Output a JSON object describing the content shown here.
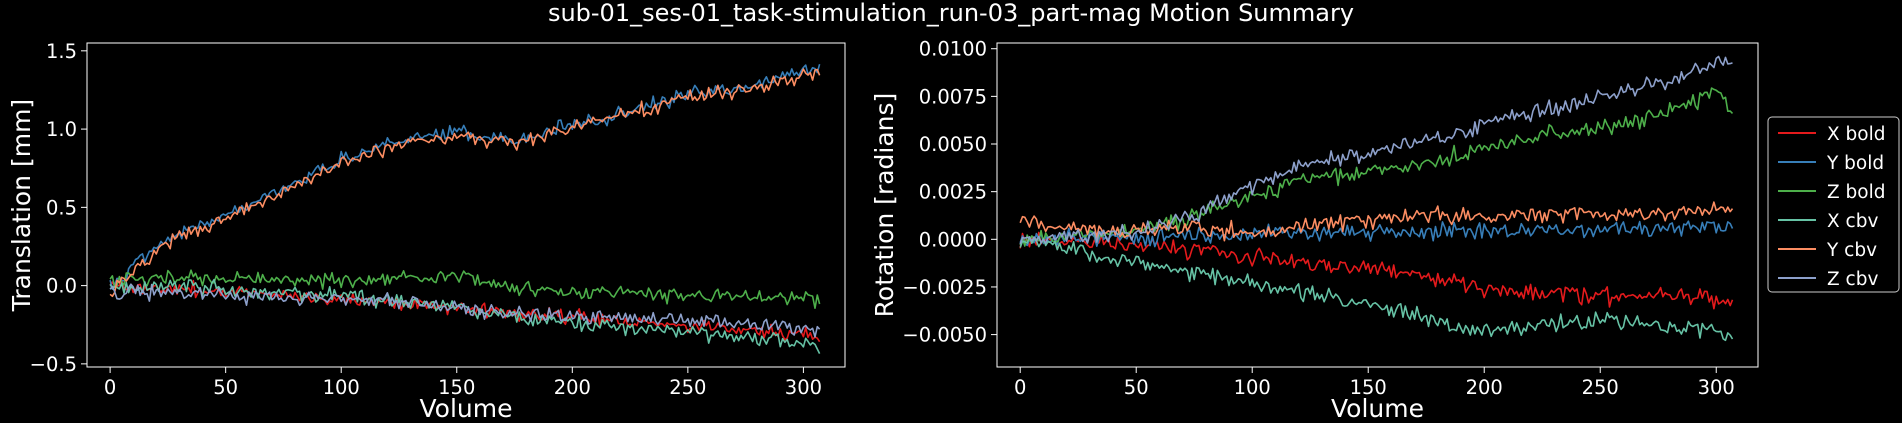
{
  "title": "sub-01_ses-01_task-stimulation_run-03_part-mag Motion Summary",
  "chart_data": [
    {
      "type": "line",
      "xlabel": "Volume",
      "ylabel": "Translation [mm]",
      "xlim": [
        -10,
        318
      ],
      "ylim": [
        -0.52,
        1.55
      ],
      "xticks": [
        0,
        50,
        100,
        150,
        200,
        250,
        300
      ],
      "yticks": [
        -0.5,
        0.0,
        0.5,
        1.0,
        1.5
      ],
      "ytick_labels": [
        "−0.5",
        "0.0",
        "0.5",
        "1.0",
        "1.5"
      ],
      "x": [
        0,
        25,
        50,
        75,
        100,
        125,
        150,
        175,
        200,
        225,
        250,
        275,
        300,
        307
      ],
      "series": [
        {
          "name": "X bold",
          "color": "#e41a1c",
          "values": [
            0.0,
            -0.02,
            -0.04,
            -0.06,
            -0.08,
            -0.11,
            -0.14,
            -0.17,
            -0.2,
            -0.23,
            -0.26,
            -0.28,
            -0.31,
            -0.33
          ]
        },
        {
          "name": "Y bold",
          "color": "#377eb8",
          "values": [
            0.0,
            0.3,
            0.45,
            0.62,
            0.8,
            0.93,
            0.98,
            0.93,
            1.02,
            1.12,
            1.22,
            1.26,
            1.37,
            1.37
          ]
        },
        {
          "name": "Z bold",
          "color": "#4daf4a",
          "values": [
            0.02,
            0.05,
            0.04,
            0.04,
            0.03,
            0.05,
            0.07,
            -0.02,
            -0.05,
            -0.04,
            -0.06,
            -0.07,
            -0.07,
            -0.1
          ]
        },
        {
          "name": "X cbv",
          "color": "#66c2a5",
          "values": [
            0.0,
            0.0,
            -0.02,
            -0.05,
            -0.07,
            -0.1,
            -0.14,
            -0.2,
            -0.24,
            -0.27,
            -0.3,
            -0.33,
            -0.36,
            -0.4
          ]
        },
        {
          "name": "Y cbv",
          "color": "#fc8d62",
          "values": [
            -0.05,
            0.28,
            0.43,
            0.6,
            0.78,
            0.9,
            0.96,
            0.9,
            1.0,
            1.1,
            1.2,
            1.25,
            1.33,
            1.35
          ]
        },
        {
          "name": "Z cbv",
          "color": "#8da0cb",
          "values": [
            -0.05,
            -0.04,
            -0.06,
            -0.07,
            -0.08,
            -0.1,
            -0.14,
            -0.18,
            -0.2,
            -0.2,
            -0.22,
            -0.24,
            -0.27,
            -0.3
          ]
        }
      ]
    },
    {
      "type": "line",
      "xlabel": "Volume",
      "ylabel": "Rotation [radians]",
      "xlim": [
        -10,
        318
      ],
      "ylim": [
        -0.0067,
        0.0103
      ],
      "xticks": [
        0,
        50,
        100,
        150,
        200,
        250,
        300
      ],
      "yticks": [
        -0.005,
        -0.0025,
        0.0,
        0.0025,
        0.005,
        0.0075,
        0.01
      ],
      "ytick_labels": [
        "−0.0050",
        "−0.0025",
        "0.0000",
        "0.0025",
        "0.0050",
        "0.0075",
        "0.0100"
      ],
      "x": [
        0,
        25,
        50,
        75,
        100,
        125,
        150,
        175,
        200,
        225,
        250,
        275,
        300,
        307
      ],
      "series": [
        {
          "name": "X bold",
          "color": "#e41a1c",
          "values": [
            0.0,
            -0.0001,
            -0.0003,
            -0.0006,
            -0.0009,
            -0.0012,
            -0.0015,
            -0.002,
            -0.0025,
            -0.0028,
            -0.003,
            -0.0028,
            -0.0031,
            -0.0033
          ]
        },
        {
          "name": "Y bold",
          "color": "#377eb8",
          "values": [
            0.0,
            0.0001,
            0.0001,
            0.0002,
            0.0002,
            0.0003,
            0.0004,
            0.0004,
            0.0004,
            0.0005,
            0.0005,
            0.0006,
            0.0007,
            0.0006
          ]
        },
        {
          "name": "Z bold",
          "color": "#4daf4a",
          "values": [
            0.0,
            0.0002,
            0.0005,
            0.0012,
            0.0022,
            0.0033,
            0.0035,
            0.004,
            0.0048,
            0.0055,
            0.0058,
            0.0065,
            0.0078,
            0.0068
          ]
        },
        {
          "name": "X cbv",
          "color": "#66c2a5",
          "values": [
            0.0,
            -0.0006,
            -0.0012,
            -0.0017,
            -0.0022,
            -0.0028,
            -0.0034,
            -0.0042,
            -0.0048,
            -0.0045,
            -0.0042,
            -0.0045,
            -0.0048,
            -0.0053
          ]
        },
        {
          "name": "Y cbv",
          "color": "#fc8d62",
          "values": [
            0.001,
            0.0005,
            0.0004,
            0.0006,
            0.0003,
            0.0008,
            0.001,
            0.0013,
            0.0012,
            0.0014,
            0.0012,
            0.0013,
            0.0016,
            0.0017
          ]
        },
        {
          "name": "Z cbv",
          "color": "#8da0cb",
          "values": [
            0.0,
            0.0001,
            0.0004,
            0.0012,
            0.0028,
            0.004,
            0.0045,
            0.0052,
            0.006,
            0.0068,
            0.0075,
            0.0082,
            0.0092,
            0.0095
          ]
        }
      ]
    }
  ],
  "legend": [
    {
      "label": "X bold",
      "color": "#e41a1c"
    },
    {
      "label": "Y bold",
      "color": "#377eb8"
    },
    {
      "label": "Z bold",
      "color": "#4daf4a"
    },
    {
      "label": "X cbv",
      "color": "#66c2a5"
    },
    {
      "label": "Y cbv",
      "color": "#fc8d62"
    },
    {
      "label": "Z cbv",
      "color": "#8da0cb"
    }
  ]
}
